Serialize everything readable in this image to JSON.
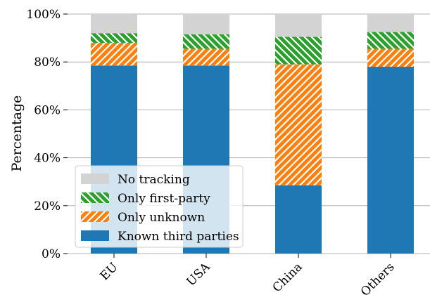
{
  "chart_data": {
    "type": "bar",
    "stacked": true,
    "categories": [
      "EU",
      "USA",
      "China",
      "Others"
    ],
    "series": [
      {
        "name": "Known third parties",
        "values": [
          78.5,
          78.5,
          28.5,
          78.0
        ],
        "color": "#1f77b4",
        "hatch": "none"
      },
      {
        "name": "Only unknown",
        "values": [
          9.5,
          7.0,
          50.5,
          7.5
        ],
        "color": "#ff7f0e",
        "hatch": "forward"
      },
      {
        "name": "Only first-party",
        "values": [
          4.0,
          6.0,
          11.5,
          7.0
        ],
        "color": "#2ca02c",
        "hatch": "back"
      },
      {
        "name": "No tracking",
        "values": [
          8.0,
          8.5,
          9.5,
          7.5
        ],
        "color": "#d3d3d3",
        "hatch": "none"
      }
    ],
    "ylabel": "Percentage",
    "xlabel": "",
    "ylim": [
      0,
      100
    ],
    "yticks": [
      "0%",
      "20%",
      "40%",
      "60%",
      "80%",
      "100%"
    ],
    "ytick_values": [
      0,
      20,
      40,
      60,
      80,
      100
    ],
    "grid": "horizontal",
    "legend": {
      "placement": "lower-left",
      "entries": [
        "No tracking",
        "Only first-party",
        "Only unknown",
        "Known third parties"
      ]
    }
  }
}
